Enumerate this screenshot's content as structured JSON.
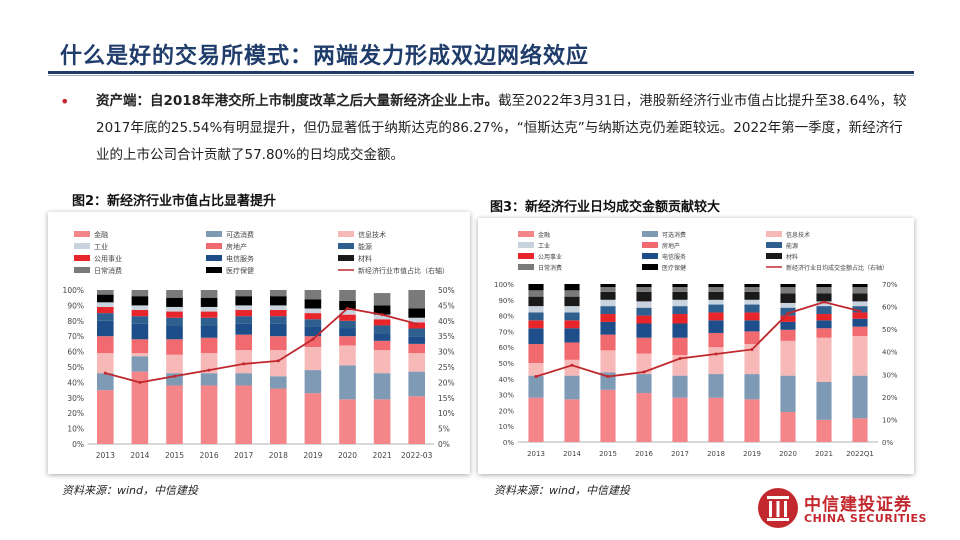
{
  "header": {
    "title": "什么是好的交易所模式：两端发力形成双边网络效应"
  },
  "body": {
    "bullet": "•",
    "lead": "资产端：自2018年港交所上市制度改革之后大量新经济企业上市。",
    "text": "截至2022年3月31日，港股新经济行业市值占比提升至38.64%，较2017年底的25.54%有明显提升，但仍显著低于纳斯达克的86.27%，“恒斯达克”与纳斯达克仍差距较远。2022年第一季度，新经济行业的上市公司合计贡献了57.80%的日均成交金额。"
  },
  "colors": {
    "金融": "#f4868a",
    "可选消费": "#7f9ab5",
    "信息技术": "#f7b8b8",
    "工业": "#c9d3de",
    "房地产": "#f06a6f",
    "能源": "#2f5f8f",
    "公用事业": "#e8252a",
    "电信服务": "#1d4e89",
    "材料": "#1a1a1a",
    "日常消费": "#7a7a7a",
    "医疗保健": "#000000",
    "line": "#c0282d"
  },
  "figure2": {
    "title": "图2：新经济行业市值占比显著提升",
    "source": "资料来源：wind，中信建投"
  },
  "figure3": {
    "title": "图3：新经济行业日均成交金额贡献较大",
    "source": "资料来源：wind，中信建投"
  },
  "logo": {
    "cn": "中信建投证券",
    "en": "CHINA SECURITIES"
  },
  "chart_data": [
    {
      "type": "bar",
      "stacked": true,
      "categories": [
        "2013",
        "2014",
        "2015",
        "2016",
        "2017",
        "2018",
        "2019",
        "2020",
        "2021",
        "2022-03"
      ],
      "legend": [
        "金融",
        "可选消费",
        "信息技术",
        "工业",
        "房地产",
        "能源",
        "公用事业",
        "电信服务",
        "材料",
        "日常消费",
        "医疗保健",
        "新经济行业市值占比（右轴）"
      ],
      "ylim_left": [
        0,
        100
      ],
      "ylim_right": [
        0,
        50
      ],
      "left_ticks": [
        "0%",
        "10%",
        "20%",
        "30%",
        "40%",
        "50%",
        "60%",
        "70%",
        "80%",
        "90%",
        "100%"
      ],
      "right_ticks": [
        "0%",
        "5%",
        "10%",
        "15%",
        "20%",
        "25%",
        "30%",
        "35%",
        "40%",
        "45%",
        "50%"
      ],
      "series": [
        {
          "name": "金融",
          "values": [
            35,
            47,
            38,
            38,
            38,
            36,
            33,
            29,
            29,
            31
          ]
        },
        {
          "name": "可选消费",
          "values": [
            11,
            10,
            8,
            8,
            8,
            8,
            15,
            22,
            17,
            16
          ]
        },
        {
          "name": "信息技术",
          "values": [
            13,
            2,
            12,
            13,
            15,
            17,
            15,
            13,
            15,
            12
          ]
        },
        {
          "name": "房地产",
          "values": [
            11,
            9,
            10,
            10,
            10,
            9,
            7,
            6,
            6,
            6
          ]
        },
        {
          "name": "电信服务",
          "values": [
            10,
            10,
            9,
            8,
            7,
            8,
            6,
            5,
            5,
            5
          ]
        },
        {
          "name": "能源",
          "values": [
            5,
            5,
            5,
            5,
            5,
            5,
            5,
            5,
            5,
            5
          ]
        },
        {
          "name": "公用事业",
          "values": [
            4,
            4,
            4,
            4,
            4,
            4,
            4,
            4,
            4,
            4
          ]
        },
        {
          "name": "工业",
          "values": [
            3,
            3,
            3,
            3,
            3,
            3,
            3,
            3,
            3,
            3
          ]
        },
        {
          "name": "医疗保健",
          "values": [
            5,
            6,
            6,
            6,
            6,
            6,
            6,
            6,
            6,
            6
          ]
        },
        {
          "name": "日常消费",
          "values": [
            3,
            4,
            5,
            5,
            4,
            4,
            6,
            7,
            8,
            12
          ]
        }
      ],
      "line": {
        "name": "新经济行业市值占比（右轴）",
        "values": [
          23,
          20,
          22,
          24,
          26,
          27,
          34,
          44,
          42,
          39
        ]
      }
    },
    {
      "type": "bar",
      "stacked": true,
      "categories": [
        "2013",
        "2014",
        "2015",
        "2016",
        "2017",
        "2018",
        "2019",
        "2020",
        "2021",
        "2022Q1"
      ],
      "legend": [
        "金融",
        "可选消费",
        "信息技术",
        "工业",
        "房地产",
        "能源",
        "公用事业",
        "电信服务",
        "材料",
        "日常消费",
        "医疗保健",
        "新经济行业日均成交金额占比（右轴）"
      ],
      "ylim_left": [
        0,
        100
      ],
      "ylim_right": [
        0,
        70
      ],
      "left_ticks": [
        "0%",
        "10%",
        "20%",
        "30%",
        "40%",
        "50%",
        "60%",
        "70%",
        "80%",
        "90%",
        "100%"
      ],
      "right_ticks": [
        "0%",
        "10%",
        "20%",
        "30%",
        "40%",
        "50%",
        "60%",
        "70%"
      ],
      "series": [
        {
          "name": "金融",
          "values": [
            28,
            27,
            33,
            31,
            28,
            28,
            27,
            19,
            14,
            15
          ]
        },
        {
          "name": "可选消费",
          "values": [
            14,
            15,
            11,
            12,
            14,
            15,
            16,
            23,
            24,
            27
          ]
        },
        {
          "name": "信息技术",
          "values": [
            8,
            10,
            14,
            13,
            13,
            17,
            19,
            22,
            28,
            25
          ]
        },
        {
          "name": "房地产",
          "values": [
            12,
            11,
            10,
            10,
            11,
            9,
            8,
            7,
            6,
            6
          ]
        },
        {
          "name": "电信服务",
          "values": [
            10,
            9,
            8,
            9,
            9,
            8,
            7,
            5,
            5,
            5
          ]
        },
        {
          "name": "公用事业",
          "values": [
            5,
            5,
            5,
            5,
            6,
            5,
            5,
            4,
            4,
            4
          ]
        },
        {
          "name": "能源",
          "values": [
            5,
            5,
            5,
            5,
            5,
            5,
            5,
            5,
            5,
            4
          ]
        },
        {
          "name": "工业",
          "values": [
            4,
            4,
            4,
            4,
            4,
            3,
            3,
            3,
            3,
            3
          ]
        },
        {
          "name": "材料",
          "values": [
            6,
            6,
            5,
            6,
            5,
            5,
            5,
            6,
            5,
            5
          ]
        },
        {
          "name": "日常消费",
          "values": [
            4,
            4,
            3,
            3,
            3,
            3,
            3,
            4,
            4,
            4
          ]
        },
        {
          "name": "医疗保健",
          "values": [
            4,
            4,
            2,
            2,
            2,
            2,
            2,
            2,
            2,
            2
          ]
        }
      ],
      "line": {
        "name": "新经济行业日均成交金额占比（右轴）",
        "values": [
          29,
          34,
          29,
          31,
          37,
          39,
          41,
          57,
          62,
          58
        ]
      }
    }
  ]
}
